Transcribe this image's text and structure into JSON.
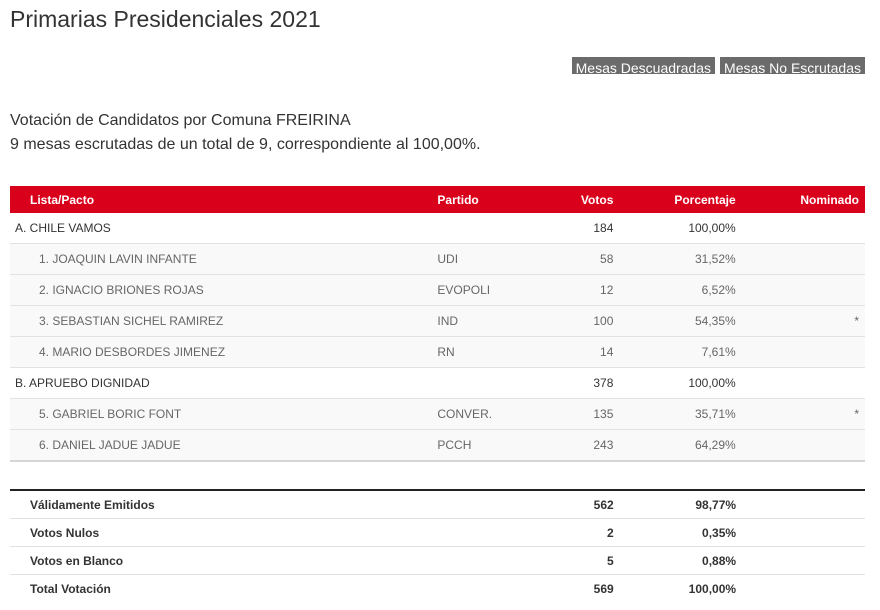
{
  "page": {
    "title": "Primarias Presidenciales 2021"
  },
  "buttons": {
    "descuadradas": "Mesas Descuadradas",
    "no_escrutadas": "Mesas No Escrutadas"
  },
  "subtitle": {
    "line1": "Votación de Candidatos por Comuna FREIRINA",
    "line2": "9 mesas escrutadas de un total de 9, correspondiente al 100,00%."
  },
  "table": {
    "headers": {
      "lista": "Lista/Pacto",
      "partido": "Partido",
      "votos": "Votos",
      "porcentaje": "Porcentaje",
      "nominado": "Nominado"
    },
    "rows": [
      {
        "lista": "A. CHILE VAMOS",
        "partido": "",
        "votos": "184",
        "porcentaje": "100,00%",
        "nominado": ""
      },
      {
        "lista": "1. JOAQUIN LAVIN INFANTE",
        "partido": "UDI",
        "votos": "58",
        "porcentaje": "31,52%",
        "nominado": ""
      },
      {
        "lista": "2. IGNACIO BRIONES ROJAS",
        "partido": "EVOPOLI",
        "votos": "12",
        "porcentaje": "6,52%",
        "nominado": ""
      },
      {
        "lista": "3. SEBASTIAN SICHEL RAMIREZ",
        "partido": "IND",
        "votos": "100",
        "porcentaje": "54,35%",
        "nominado": "*"
      },
      {
        "lista": "4. MARIO DESBORDES JIMENEZ",
        "partido": "RN",
        "votos": "14",
        "porcentaje": "7,61%",
        "nominado": ""
      },
      {
        "lista": "B. APRUEBO DIGNIDAD",
        "partido": "",
        "votos": "378",
        "porcentaje": "100,00%",
        "nominado": ""
      },
      {
        "lista": "5. GABRIEL BORIC FONT",
        "partido": "CONVER.",
        "votos": "135",
        "porcentaje": "35,71%",
        "nominado": "*"
      },
      {
        "lista": "6. DANIEL JADUE JADUE",
        "partido": "PCCH",
        "votos": "243",
        "porcentaje": "64,29%",
        "nominado": ""
      }
    ]
  },
  "totals": [
    {
      "label": "Válidamente Emitidos",
      "votos": "562",
      "porcentaje": "98,77%"
    },
    {
      "label": "Votos Nulos",
      "votos": "2",
      "porcentaje": "0,35%"
    },
    {
      "label": "Votos en Blanco",
      "votos": "5",
      "porcentaje": "0,88%"
    },
    {
      "label": "Total Votación",
      "votos": "569",
      "porcentaje": "100,00%"
    }
  ],
  "colors": {
    "header_bg": "#d9001b",
    "button_bg": "#6b6b6b"
  }
}
